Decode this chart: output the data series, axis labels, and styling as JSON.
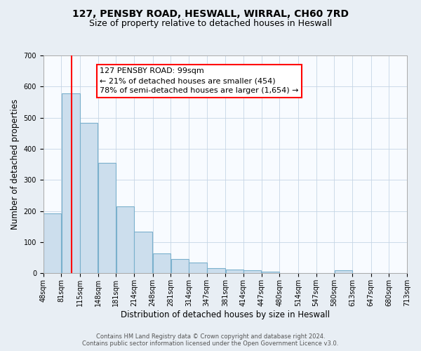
{
  "title": "127, PENSBY ROAD, HESWALL, WIRRAL, CH60 7RD",
  "subtitle": "Size of property relative to detached houses in Heswall",
  "xlabel": "Distribution of detached houses by size in Heswall",
  "ylabel": "Number of detached properties",
  "bar_left_edges": [
    48,
    81,
    115,
    148,
    181,
    214,
    248,
    281,
    314,
    347,
    381,
    414,
    447,
    480,
    514,
    547,
    580,
    613,
    647,
    680
  ],
  "bar_widths": [
    33,
    34,
    33,
    33,
    33,
    34,
    33,
    33,
    33,
    34,
    33,
    33,
    33,
    34,
    33,
    33,
    33,
    34,
    33,
    33
  ],
  "bar_heights": [
    193,
    578,
    484,
    356,
    216,
    133,
    65,
    45,
    35,
    17,
    12,
    9,
    5,
    0,
    0,
    0,
    10,
    0,
    0,
    0
  ],
  "bar_color": "#ccdeed",
  "bar_edge_color": "#7ab0cc",
  "x_tick_labels": [
    "48sqm",
    "81sqm",
    "115sqm",
    "148sqm",
    "181sqm",
    "214sqm",
    "248sqm",
    "281sqm",
    "314sqm",
    "347sqm",
    "381sqm",
    "414sqm",
    "447sqm",
    "480sqm",
    "514sqm",
    "547sqm",
    "580sqm",
    "613sqm",
    "647sqm",
    "680sqm",
    "713sqm"
  ],
  "x_tick_positions": [
    48,
    81,
    115,
    148,
    181,
    214,
    248,
    281,
    314,
    347,
    381,
    414,
    447,
    480,
    514,
    547,
    580,
    613,
    647,
    680,
    713
  ],
  "xlim_left": 48,
  "xlim_right": 713,
  "ylim": [
    0,
    700
  ],
  "yticks": [
    0,
    100,
    200,
    300,
    400,
    500,
    600,
    700
  ],
  "red_line_x": 99,
  "annotation_text": "127 PENSBY ROAD: 99sqm\n← 21% of detached houses are smaller (454)\n78% of semi-detached houses are larger (1,654) →",
  "footer_line1": "Contains HM Land Registry data © Crown copyright and database right 2024.",
  "footer_line2": "Contains public sector information licensed under the Open Government Licence v3.0.",
  "background_color": "#e8eef4",
  "plot_background_color": "#f8fbff",
  "grid_color": "#c5d5e5",
  "title_fontsize": 10,
  "subtitle_fontsize": 9,
  "axis_label_fontsize": 8.5,
  "tick_fontsize": 7,
  "footer_fontsize": 6,
  "annotation_fontsize": 8
}
